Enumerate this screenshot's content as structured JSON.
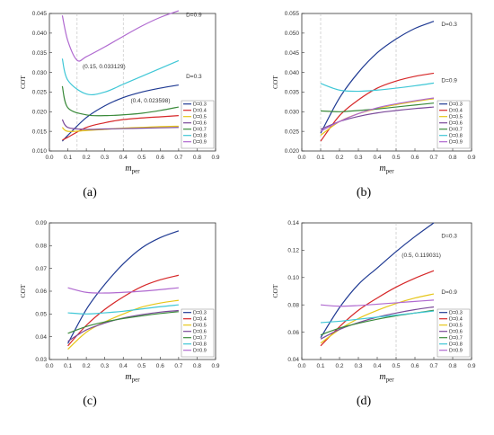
{
  "chart_data": [
    {
      "type": "line",
      "panel": "a",
      "ylabel": "COT",
      "xlabel": "m",
      "xlabel_sub": "per",
      "xlim": [
        0.0,
        0.9
      ],
      "ylim": [
        0.01,
        0.045
      ],
      "xticks": [
        0.0,
        0.1,
        0.2,
        0.3,
        0.4,
        0.5,
        0.6,
        0.7,
        0.8,
        0.9
      ],
      "yticks": [
        0.01,
        0.015,
        0.02,
        0.025,
        0.03,
        0.035,
        0.04,
        0.045
      ],
      "ytick_labels": [
        "0.010",
        "0.015",
        "0.020",
        "0.025",
        "0.030",
        "0.035",
        "0.040",
        "0.045"
      ],
      "xtick_labels": [
        "0.0",
        "0.1",
        "0.2",
        "0.3",
        "0.4",
        "0.5",
        "0.6",
        "0.7",
        "0.8",
        "0.9"
      ],
      "guide_x": [
        0.15,
        0.4
      ],
      "legend_position": "right",
      "series": [
        {
          "name": "D=0.3",
          "color": "#1f3a93",
          "x": [
            0.07,
            0.1,
            0.2,
            0.3,
            0.4,
            0.5,
            0.6,
            0.7
          ],
          "y": [
            0.0125,
            0.014,
            0.0185,
            0.0215,
            0.0236,
            0.025,
            0.026,
            0.0268
          ]
        },
        {
          "name": "D=0.4",
          "color": "#d62728",
          "x": [
            0.07,
            0.1,
            0.2,
            0.3,
            0.4,
            0.5,
            0.6,
            0.7
          ],
          "y": [
            0.0128,
            0.0135,
            0.016,
            0.0172,
            0.018,
            0.0184,
            0.0187,
            0.019
          ]
        },
        {
          "name": "D=0.5",
          "color": "#e6c619",
          "x": [
            0.07,
            0.1,
            0.2,
            0.3,
            0.4,
            0.5,
            0.6,
            0.7
          ],
          "y": [
            0.016,
            0.015,
            0.0152,
            0.0155,
            0.0158,
            0.016,
            0.0162,
            0.0163
          ]
        },
        {
          "name": "D=0.6",
          "color": "#7b4a9a",
          "x": [
            0.07,
            0.1,
            0.2,
            0.3,
            0.4,
            0.5,
            0.6,
            0.7
          ],
          "y": [
            0.018,
            0.016,
            0.0155,
            0.0156,
            0.0157,
            0.0158,
            0.0159,
            0.016
          ]
        },
        {
          "name": "D=0.7",
          "color": "#3a8a3a",
          "x": [
            0.07,
            0.1,
            0.2,
            0.3,
            0.4,
            0.5,
            0.6,
            0.7
          ],
          "y": [
            0.0265,
            0.021,
            0.0192,
            0.019,
            0.0192,
            0.0196,
            0.0203,
            0.0212
          ]
        },
        {
          "name": "D=0.8",
          "color": "#3fc7d6",
          "x": [
            0.07,
            0.1,
            0.2,
            0.3,
            0.4,
            0.5,
            0.6,
            0.7
          ],
          "y": [
            0.0335,
            0.028,
            0.0245,
            0.025,
            0.027,
            0.029,
            0.031,
            0.033
          ]
        },
        {
          "name": "D=0.9",
          "color": "#b06ad0",
          "x": [
            0.07,
            0.1,
            0.15,
            0.2,
            0.3,
            0.4,
            0.5,
            0.6,
            0.7
          ],
          "y": [
            0.0445,
            0.038,
            0.0331,
            0.034,
            0.0365,
            0.0392,
            0.0418,
            0.044,
            0.0457
          ]
        }
      ],
      "annotations": [
        {
          "text": "(0.15, 0.033129)",
          "x": 0.18,
          "y": 0.031
        },
        {
          "text": "(0.4, 0.023598)",
          "x": 0.44,
          "y": 0.0224
        },
        {
          "text": "D=0.9",
          "x": 0.74,
          "y": 0.0442
        },
        {
          "text": "D=0.3",
          "x": 0.74,
          "y": 0.0285
        }
      ]
    },
    {
      "type": "line",
      "panel": "b",
      "ylabel": "COT",
      "xlabel": "m",
      "xlabel_sub": "per",
      "xlim": [
        0.0,
        0.9
      ],
      "ylim": [
        0.02,
        0.055
      ],
      "xticks": [
        0.0,
        0.1,
        0.2,
        0.3,
        0.4,
        0.5,
        0.6,
        0.7,
        0.8,
        0.9
      ],
      "yticks": [
        0.02,
        0.025,
        0.03,
        0.035,
        0.04,
        0.045,
        0.05,
        0.055
      ],
      "ytick_labels": [
        "0.020",
        "0.025",
        "0.030",
        "0.035",
        "0.040",
        "0.045",
        "0.050",
        "0.055"
      ],
      "xtick_labels": [
        "0.0",
        "0.1",
        "0.2",
        "0.3",
        "0.4",
        "0.5",
        "0.6",
        "0.7",
        "0.8",
        "0.9"
      ],
      "guide_x": [
        0.1,
        0.5
      ],
      "legend_position": "right",
      "series": [
        {
          "name": "D=0.3",
          "color": "#1f3a93",
          "x": [
            0.1,
            0.2,
            0.3,
            0.4,
            0.5,
            0.6,
            0.7
          ],
          "y": [
            0.0245,
            0.0335,
            0.04,
            0.045,
            0.0485,
            0.0512,
            0.053
          ]
        },
        {
          "name": "D=0.4",
          "color": "#d62728",
          "x": [
            0.1,
            0.2,
            0.3,
            0.4,
            0.5,
            0.6,
            0.7
          ],
          "y": [
            0.0225,
            0.029,
            0.033,
            0.036,
            0.0378,
            0.039,
            0.0398
          ]
        },
        {
          "name": "D=0.5",
          "color": "#e6c619",
          "x": [
            0.1,
            0.2,
            0.3,
            0.4,
            0.5,
            0.6,
            0.7
          ],
          "y": [
            0.024,
            0.0275,
            0.0295,
            0.0308,
            0.0318,
            0.0326,
            0.0333
          ]
        },
        {
          "name": "D=0.6",
          "color": "#7b4a9a",
          "x": [
            0.1,
            0.2,
            0.3,
            0.4,
            0.5,
            0.6,
            0.7
          ],
          "y": [
            0.0255,
            0.0275,
            0.0288,
            0.0297,
            0.0303,
            0.0308,
            0.0312
          ]
        },
        {
          "name": "D=0.7",
          "color": "#3a8a3a",
          "x": [
            0.1,
            0.2,
            0.3,
            0.4,
            0.5,
            0.6,
            0.7
          ],
          "y": [
            0.0302,
            0.03,
            0.0303,
            0.0307,
            0.0312,
            0.0317,
            0.0322
          ]
        },
        {
          "name": "D=0.8",
          "color": "#3fc7d6",
          "x": [
            0.1,
            0.2,
            0.3,
            0.4,
            0.5,
            0.6,
            0.7
          ],
          "y": [
            0.0372,
            0.0355,
            0.0352,
            0.0355,
            0.036,
            0.0366,
            0.0373
          ]
        },
        {
          "name": "D=0.9",
          "color": "#b06ad0",
          "x": [
            0.1,
            0.2,
            0.3,
            0.4,
            0.5,
            0.6,
            0.7
          ],
          "y": [
            0.025,
            0.0275,
            0.0295,
            0.031,
            0.032,
            0.0328,
            0.0335
          ]
        }
      ],
      "annotations": [
        {
          "text": "D=0.3",
          "x": 0.74,
          "y": 0.0518
        },
        {
          "text": "D=0.9",
          "x": 0.74,
          "y": 0.0375
        }
      ]
    },
    {
      "type": "line",
      "panel": "c",
      "ylabel": "COT",
      "xlabel": "m",
      "xlabel_sub": "per",
      "xlim": [
        0.0,
        0.9
      ],
      "ylim": [
        0.03,
        0.09
      ],
      "xticks": [
        0.0,
        0.1,
        0.2,
        0.3,
        0.4,
        0.5,
        0.6,
        0.7,
        0.8,
        0.9
      ],
      "yticks": [
        0.03,
        0.04,
        0.05,
        0.06,
        0.07,
        0.08,
        0.09
      ],
      "ytick_labels": [
        "0.03",
        "0.04",
        "0.05",
        "0.06",
        "0.07",
        "0.08",
        "0.09"
      ],
      "xtick_labels": [
        "0.0",
        "0.1",
        "0.2",
        "0.3",
        "0.4",
        "0.5",
        "0.6",
        "0.7",
        "0.8",
        "0.9"
      ],
      "guide_x": [],
      "legend_position": "right",
      "series": [
        {
          "name": "D=0.3",
          "color": "#1f3a93",
          "x": [
            0.1,
            0.2,
            0.3,
            0.4,
            0.5,
            0.6,
            0.7
          ],
          "y": [
            0.037,
            0.052,
            0.063,
            0.072,
            0.079,
            0.0835,
            0.0865
          ]
        },
        {
          "name": "D=0.4",
          "color": "#d62728",
          "x": [
            0.1,
            0.2,
            0.3,
            0.4,
            0.5,
            0.6,
            0.7
          ],
          "y": [
            0.036,
            0.045,
            0.052,
            0.0575,
            0.062,
            0.065,
            0.067
          ]
        },
        {
          "name": "D=0.5",
          "color": "#e6c619",
          "x": [
            0.1,
            0.2,
            0.3,
            0.4,
            0.5,
            0.6,
            0.7
          ],
          "y": [
            0.0345,
            0.042,
            0.0465,
            0.05,
            0.053,
            0.0548,
            0.056
          ]
        },
        {
          "name": "D=0.6",
          "color": "#7b4a9a",
          "x": [
            0.1,
            0.2,
            0.3,
            0.4,
            0.5,
            0.6,
            0.7
          ],
          "y": [
            0.038,
            0.043,
            0.046,
            0.0482,
            0.0497,
            0.0508,
            0.0515
          ]
        },
        {
          "name": "D=0.7",
          "color": "#3a8a3a",
          "x": [
            0.1,
            0.2,
            0.3,
            0.4,
            0.5,
            0.6,
            0.7
          ],
          "y": [
            0.0415,
            0.0445,
            0.0465,
            0.048,
            0.0492,
            0.0502,
            0.051
          ]
        },
        {
          "name": "D=0.8",
          "color": "#3fc7d6",
          "x": [
            0.1,
            0.2,
            0.3,
            0.4,
            0.5,
            0.6,
            0.7
          ],
          "y": [
            0.0505,
            0.05,
            0.0505,
            0.0512,
            0.0522,
            0.0532,
            0.054
          ]
        },
        {
          "name": "D=0.9",
          "color": "#b06ad0",
          "x": [
            0.1,
            0.2,
            0.3,
            0.4,
            0.5,
            0.6,
            0.7
          ],
          "y": [
            0.0615,
            0.0595,
            0.0592,
            0.0595,
            0.06,
            0.0607,
            0.0615
          ]
        }
      ],
      "annotations": []
    },
    {
      "type": "line",
      "panel": "d",
      "ylabel": "COT",
      "xlabel": "m",
      "xlabel_sub": "per",
      "xlim": [
        0.0,
        0.9
      ],
      "ylim": [
        0.04,
        0.14
      ],
      "xticks": [
        0.0,
        0.1,
        0.2,
        0.3,
        0.4,
        0.5,
        0.6,
        0.7,
        0.8,
        0.9
      ],
      "yticks": [
        0.04,
        0.06,
        0.08,
        0.1,
        0.12,
        0.14
      ],
      "ytick_labels": [
        "0.04",
        "0.06",
        "0.08",
        "0.10",
        "0.12",
        "0.14"
      ],
      "xtick_labels": [
        "0.0",
        "0.1",
        "0.2",
        "0.3",
        "0.4",
        "0.5",
        "0.6",
        "0.7",
        "0.8",
        "0.9"
      ],
      "guide_x": [
        0.5
      ],
      "legend_position": "right",
      "series": [
        {
          "name": "D=0.3",
          "color": "#1f3a93",
          "x": [
            0.1,
            0.2,
            0.3,
            0.4,
            0.5,
            0.6,
            0.7
          ],
          "y": [
            0.056,
            0.078,
            0.095,
            0.107,
            0.119,
            0.13,
            0.14
          ]
        },
        {
          "name": "D=0.4",
          "color": "#d62728",
          "x": [
            0.1,
            0.2,
            0.3,
            0.4,
            0.5,
            0.6,
            0.7
          ],
          "y": [
            0.05,
            0.064,
            0.076,
            0.085,
            0.093,
            0.0995,
            0.105
          ]
        },
        {
          "name": "D=0.5",
          "color": "#e6c619",
          "x": [
            0.1,
            0.2,
            0.3,
            0.4,
            0.5,
            0.6,
            0.7
          ],
          "y": [
            0.052,
            0.062,
            0.07,
            0.076,
            0.081,
            0.085,
            0.088
          ]
        },
        {
          "name": "D=0.6",
          "color": "#7b4a9a",
          "x": [
            0.1,
            0.2,
            0.3,
            0.4,
            0.5,
            0.6,
            0.7
          ],
          "y": [
            0.055,
            0.062,
            0.067,
            0.071,
            0.074,
            0.0765,
            0.0785
          ]
        },
        {
          "name": "D=0.7",
          "color": "#3a8a3a",
          "x": [
            0.1,
            0.2,
            0.3,
            0.4,
            0.5,
            0.6,
            0.7
          ],
          "y": [
            0.058,
            0.063,
            0.0665,
            0.0695,
            0.072,
            0.074,
            0.076
          ]
        },
        {
          "name": "D=0.8",
          "color": "#3fc7d6",
          "x": [
            0.1,
            0.2,
            0.3,
            0.4,
            0.5,
            0.6,
            0.7
          ],
          "y": [
            0.067,
            0.068,
            0.0695,
            0.071,
            0.0725,
            0.074,
            0.0755
          ]
        },
        {
          "name": "D=0.9",
          "color": "#b06ad0",
          "x": [
            0.1,
            0.2,
            0.3,
            0.4,
            0.5,
            0.6,
            0.7
          ],
          "y": [
            0.08,
            0.079,
            0.0795,
            0.0805,
            0.0815,
            0.0825,
            0.0835
          ]
        }
      ],
      "annotations": [
        {
          "text": "(0.5, 0.119031)",
          "x": 0.53,
          "y": 0.115
        },
        {
          "text": "D=0.3",
          "x": 0.74,
          "y": 0.129
        },
        {
          "text": "D=0.9",
          "x": 0.74,
          "y": 0.088
        }
      ]
    }
  ],
  "panel_labels": [
    "(a)",
    "(b)",
    "(c)",
    "(d)"
  ]
}
